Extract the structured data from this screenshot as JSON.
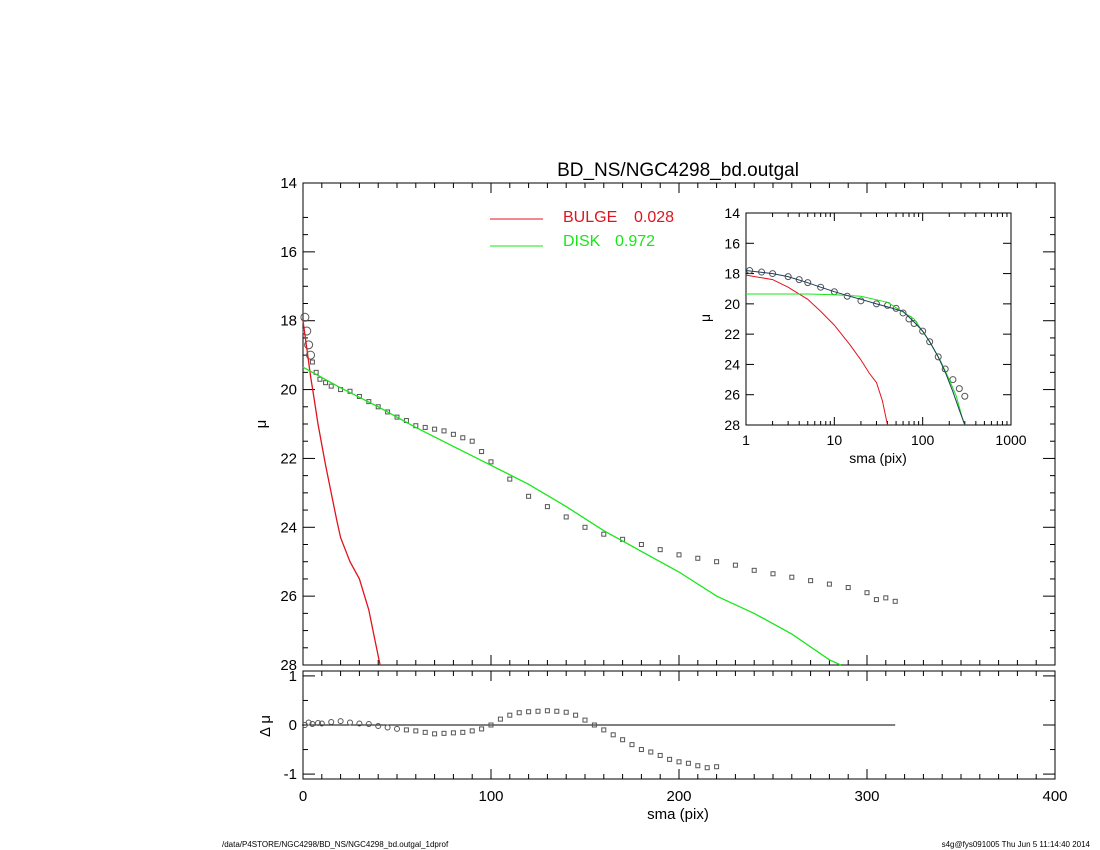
{
  "title": "BD_NS/NGC4298_bd.outgal",
  "footer": {
    "left": "/data/P4STORE/NGC4298/BD_NS/NGC4298_bd.outgal_1dprof",
    "right": "s4g@fys091005  Thu Jun  5 11:14:40 2014"
  },
  "legend": [
    {
      "label": "BULGE",
      "value": "0.028",
      "color": "#e0141e"
    },
    {
      "label": "DISK",
      "value": "0.972",
      "color": "#19e619"
    }
  ],
  "colors": {
    "bulge": "#e0141e",
    "disk": "#19e619",
    "data": "#555555",
    "model": "#1f3d5c"
  },
  "chart_data": [
    {
      "type": "scatter",
      "panel": "main",
      "xlabel": "sma (pix)",
      "ylabel": "μ",
      "xlim": [
        0,
        400
      ],
      "ylim": [
        28,
        14
      ],
      "xticks": [
        0,
        100,
        200,
        300,
        400
      ],
      "yticks": [
        14,
        16,
        18,
        20,
        22,
        24,
        26,
        28
      ],
      "series": [
        {
          "kind": "points",
          "x": [
            1,
            2,
            3,
            4,
            5,
            7,
            9,
            12,
            15,
            20,
            25,
            30,
            35,
            40,
            45,
            50,
            55,
            60,
            65,
            70,
            75,
            80,
            85,
            90,
            95,
            100,
            110,
            120,
            130,
            140,
            150,
            160,
            170,
            180,
            190,
            200,
            210,
            220,
            230,
            240,
            250,
            260,
            270,
            280,
            290,
            300,
            305,
            310,
            315
          ],
          "y": [
            17.9,
            18.3,
            18.7,
            19.0,
            19.2,
            19.5,
            19.7,
            19.8,
            19.9,
            20.0,
            20.05,
            20.2,
            20.35,
            20.5,
            20.65,
            20.8,
            20.9,
            21.05,
            21.1,
            21.15,
            21.2,
            21.3,
            21.4,
            21.5,
            21.8,
            22.1,
            22.6,
            23.1,
            23.4,
            23.7,
            24.0,
            24.2,
            24.35,
            24.5,
            24.65,
            24.8,
            24.9,
            25.0,
            25.1,
            25.25,
            25.35,
            25.45,
            25.55,
            25.65,
            25.75,
            25.9,
            26.1,
            26.05,
            26.15
          ]
        },
        {
          "kind": "line",
          "name": "BULGE",
          "x": [
            0,
            2,
            4,
            6,
            8,
            10,
            12,
            15,
            18,
            20,
            25,
            30,
            35,
            38,
            41
          ],
          "y": [
            18.0,
            18.8,
            19.6,
            20.3,
            21.0,
            21.6,
            22.2,
            23.0,
            23.8,
            24.3,
            25.0,
            25.5,
            26.4,
            27.2,
            28.0
          ]
        },
        {
          "kind": "line",
          "name": "DISK",
          "x": [
            0,
            20,
            40,
            60,
            80,
            100,
            120,
            140,
            160,
            180,
            200,
            220,
            240,
            260,
            280,
            286
          ],
          "y": [
            19.35,
            19.95,
            20.5,
            21.1,
            21.65,
            22.2,
            22.75,
            23.4,
            24.1,
            24.7,
            25.3,
            26.0,
            26.5,
            27.1,
            27.85,
            28.0
          ]
        }
      ]
    },
    {
      "type": "scatter",
      "panel": "residual",
      "xlabel": "sma (pix)",
      "ylabel": "Δ μ",
      "xlim": [
        0,
        400
      ],
      "ylim": [
        -1.1,
        1.1
      ],
      "yticks": [
        -1,
        0,
        1
      ],
      "x": [
        1,
        3,
        5,
        8,
        10,
        15,
        20,
        25,
        30,
        35,
        40,
        45,
        50,
        55,
        60,
        65,
        70,
        75,
        80,
        85,
        90,
        95,
        100,
        105,
        110,
        115,
        120,
        125,
        130,
        135,
        140,
        145,
        150,
        155,
        160,
        165,
        170,
        175,
        180,
        185,
        190,
        195,
        200,
        205,
        210,
        215,
        220
      ],
      "y": [
        0.0,
        0.05,
        0.02,
        0.04,
        0.03,
        0.06,
        0.08,
        0.05,
        0.03,
        0.02,
        -0.02,
        -0.05,
        -0.08,
        -0.1,
        -0.12,
        -0.15,
        -0.18,
        -0.17,
        -0.16,
        -0.15,
        -0.12,
        -0.08,
        0.0,
        0.12,
        0.2,
        0.25,
        0.27,
        0.28,
        0.29,
        0.28,
        0.26,
        0.2,
        0.1,
        0.0,
        -0.1,
        -0.2,
        -0.3,
        -0.4,
        -0.5,
        -0.55,
        -0.62,
        -0.7,
        -0.75,
        -0.78,
        -0.83,
        -0.87,
        -0.85
      ],
      "zero_line_xmax": 315
    },
    {
      "type": "scatter",
      "panel": "inset",
      "xlabel": "sma (pix)",
      "ylabel": "μ",
      "xscale": "log",
      "xlim": [
        1,
        1000
      ],
      "ylim": [
        28,
        14
      ],
      "xticks": [
        1,
        10,
        100,
        1000
      ],
      "yticks": [
        14,
        16,
        18,
        20,
        22,
        24,
        26,
        28
      ],
      "series": [
        {
          "kind": "points",
          "x": [
            1.1,
            1.5,
            2,
            3,
            4,
            5,
            7,
            10,
            14,
            20,
            30,
            40,
            50,
            60,
            70,
            80,
            100,
            120,
            150,
            180,
            220,
            260,
            300
          ],
          "y": [
            17.8,
            17.9,
            18.0,
            18.2,
            18.4,
            18.6,
            18.9,
            19.2,
            19.5,
            19.8,
            20.0,
            20.1,
            20.3,
            20.6,
            21.0,
            21.3,
            21.8,
            22.5,
            23.5,
            24.3,
            25.0,
            25.6,
            26.1
          ]
        },
        {
          "kind": "line",
          "name": "BULGE",
          "x": [
            1,
            2,
            3,
            5,
            7,
            10,
            15,
            20,
            25,
            30,
            35,
            40
          ],
          "y": [
            18.1,
            18.4,
            18.9,
            19.7,
            20.5,
            21.4,
            22.7,
            23.7,
            24.6,
            25.2,
            26.4,
            28.0
          ]
        },
        {
          "kind": "line",
          "name": "DISK",
          "x": [
            1,
            5,
            10,
            20,
            40,
            80,
            120,
            160,
            200,
            240,
            280,
            300
          ],
          "y": [
            19.35,
            19.35,
            19.4,
            19.5,
            19.9,
            21.0,
            22.5,
            23.8,
            25.0,
            26.1,
            27.5,
            28.0
          ]
        },
        {
          "kind": "line",
          "name": "model",
          "x": [
            1,
            2,
            3,
            5,
            7,
            10,
            15,
            20,
            30,
            40,
            60,
            80,
            100,
            120,
            150,
            180,
            220,
            260,
            300
          ],
          "y": [
            17.8,
            18.0,
            18.2,
            18.6,
            18.9,
            19.2,
            19.5,
            19.7,
            20.0,
            20.2,
            20.5,
            21.2,
            21.8,
            22.5,
            23.5,
            24.5,
            25.8,
            27.0,
            28.0
          ]
        }
      ]
    }
  ]
}
